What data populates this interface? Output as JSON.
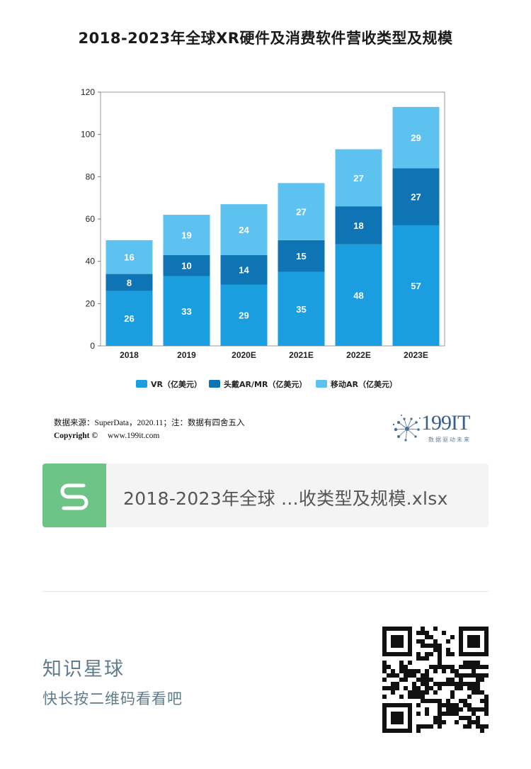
{
  "chart_data": {
    "type": "bar",
    "stacked": true,
    "title": "2018-2023年全球XR硬件及消费软件营收类型及规模",
    "categories": [
      "2018",
      "2019",
      "2020E",
      "2021E",
      "2022E",
      "2023E"
    ],
    "series": [
      {
        "name": "VR（亿美元）",
        "color": "#1a9ee0",
        "values": [
          26,
          33,
          29,
          35,
          48,
          57
        ]
      },
      {
        "name": "头戴AR/MR（亿美元）",
        "color": "#0f74b3",
        "values": [
          8,
          10,
          14,
          15,
          18,
          27
        ]
      },
      {
        "name": "移动AR（亿美元）",
        "color": "#5ec2f0",
        "values": [
          16,
          19,
          24,
          27,
          27,
          29
        ]
      }
    ],
    "yticks": [
      0,
      20,
      40,
      60,
      80,
      100,
      120
    ],
    "ylim": [
      0,
      120
    ],
    "legend": "bottom",
    "grid": false
  },
  "source": {
    "line": "数据来源：SuperData，2020.11；注：数据有四舍五入",
    "copyright_label": "Copyright ©",
    "website": "www.199it.com"
  },
  "logo": {
    "text": "199IT",
    "subtitle": "数据驱动未来"
  },
  "attachment": {
    "file_name": "2018-2023年全球 ...收类型及规模.xlsx",
    "icon": "spreadsheet-s-icon",
    "color": "#6cc487"
  },
  "footer": {
    "title": "知识星球",
    "subtitle": "快长按二维码看看吧",
    "qr_icon": "qr-code-icon"
  }
}
